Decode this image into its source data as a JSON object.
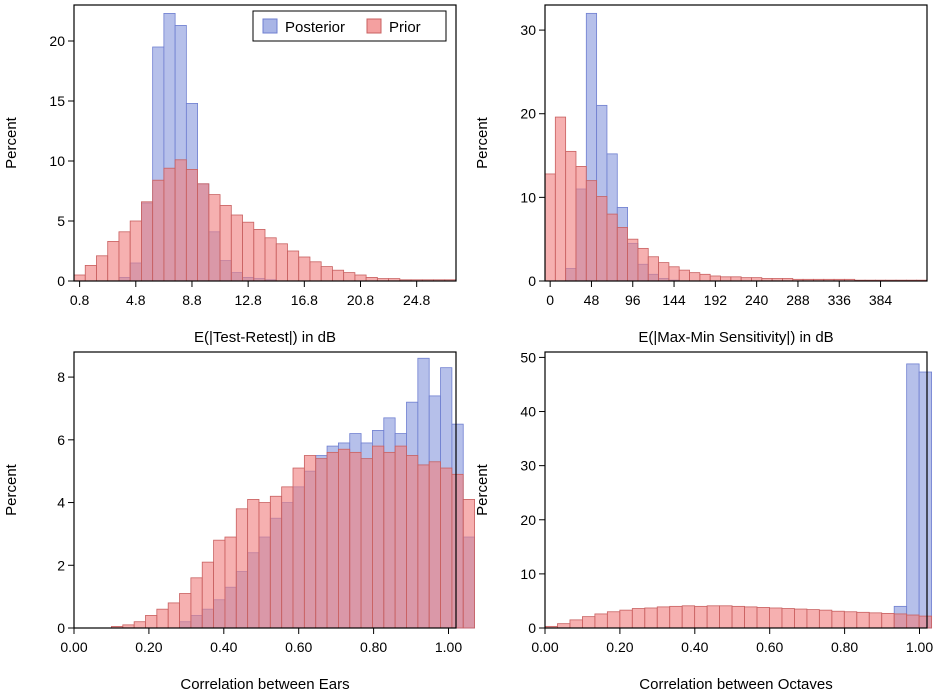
{
  "colors": {
    "posterior_fill": "#a9b5e6",
    "posterior_stroke": "#6f7fd0",
    "prior_fill": "#f08080",
    "prior_stroke": "#c86060",
    "frame": "#000000"
  },
  "legend": {
    "posterior": "Posterior",
    "prior": "Prior"
  },
  "chart_data": [
    {
      "type": "bar",
      "title": "",
      "xlabel": "E(|Test-Retest|) in dB",
      "ylabel": "Percent",
      "xlim": [
        0.4,
        27.6
      ],
      "ylim": [
        0,
        23
      ],
      "x_ticks": [
        "0.8",
        "4.8",
        "8.8",
        "12.8",
        "16.8",
        "20.8",
        "24.8"
      ],
      "x_tick_values": [
        0.8,
        4.8,
        8.8,
        12.8,
        16.8,
        20.8,
        24.8
      ],
      "y_ticks": [
        "0",
        "5",
        "10",
        "15",
        "20"
      ],
      "y_tick_values": [
        0,
        5,
        10,
        15,
        20
      ],
      "bin_start": 0.4,
      "bin_width": 0.8,
      "legend": "top-right",
      "series": [
        {
          "name": "Posterior",
          "values": [
            0,
            0,
            0,
            0,
            0.3,
            1.5,
            6.5,
            19.5,
            22.3,
            21.3,
            14.8,
            8.1,
            4.1,
            1.7,
            0.7,
            0.3,
            0.2,
            0.1,
            0,
            0,
            0,
            0,
            0,
            0,
            0,
            0,
            0,
            0,
            0,
            0,
            0,
            0,
            0,
            0
          ]
        },
        {
          "name": "Prior",
          "values": [
            0.5,
            1.3,
            2.1,
            3.3,
            4.1,
            5.0,
            6.6,
            8.4,
            9.4,
            10.1,
            9.3,
            8.1,
            7.2,
            6.3,
            5.5,
            4.9,
            4.3,
            3.6,
            3.1,
            2.5,
            2.0,
            1.6,
            1.2,
            0.9,
            0.7,
            0.5,
            0.3,
            0.2,
            0.2,
            0.1,
            0.1,
            0.1,
            0.1,
            0.1
          ]
        }
      ]
    },
    {
      "type": "bar",
      "title": "",
      "xlabel": "E(|Max-Min Sensitivity|) in dB",
      "ylabel": "Percent",
      "xlim": [
        -6,
        438
      ],
      "ylim": [
        0,
        33
      ],
      "x_ticks": [
        "0",
        "48",
        "96",
        "144",
        "192",
        "240",
        "288",
        "336",
        "384"
      ],
      "x_tick_values": [
        0,
        48,
        96,
        144,
        192,
        240,
        288,
        336,
        384
      ],
      "y_ticks": [
        "0",
        "10",
        "20",
        "30"
      ],
      "y_tick_values": [
        0,
        10,
        20,
        30
      ],
      "bin_start": -6,
      "bin_width": 12,
      "legend": "top-right",
      "series": [
        {
          "name": "Posterior",
          "values": [
            0,
            0,
            1.5,
            11.0,
            32.0,
            21.0,
            15.2,
            8.8,
            4.5,
            2.0,
            0.8,
            0.3,
            0.1,
            0,
            0,
            0,
            0,
            0,
            0,
            0,
            0,
            0,
            0,
            0,
            0,
            0,
            0,
            0,
            0,
            0,
            0,
            0,
            0,
            0,
            0,
            0,
            0
          ]
        },
        {
          "name": "Prior",
          "values": [
            12.8,
            19.6,
            15.5,
            13.7,
            12.0,
            10.1,
            8.0,
            6.4,
            5.0,
            3.9,
            2.9,
            2.2,
            1.7,
            1.3,
            1.0,
            0.8,
            0.6,
            0.5,
            0.5,
            0.4,
            0.4,
            0.3,
            0.3,
            0.3,
            0.2,
            0.2,
            0.2,
            0.2,
            0.2,
            0.2,
            0.1,
            0.1,
            0.1,
            0.1,
            0.1,
            0.1,
            0.1
          ]
        }
      ]
    },
    {
      "type": "bar",
      "title": "",
      "xlabel": "Correlation between Ears",
      "ylabel": "Percent",
      "xlim": [
        0,
        1.02
      ],
      "ylim": [
        0,
        8.8
      ],
      "x_ticks": [
        "0.00",
        "0.20",
        "0.40",
        "0.60",
        "0.80",
        "1.00"
      ],
      "x_tick_values": [
        0,
        0.2,
        0.4,
        0.6,
        0.8,
        1.0
      ],
      "y_ticks": [
        "0",
        "2",
        "4",
        "6",
        "8"
      ],
      "y_tick_values": [
        0,
        2,
        4,
        6,
        8
      ],
      "bin_start": 0.1,
      "bin_width": 0.0303,
      "legend": "none",
      "series": [
        {
          "name": "Posterior",
          "values": [
            0,
            0,
            0,
            0,
            0,
            0,
            0.2,
            0.4,
            0.6,
            0.9,
            1.3,
            1.8,
            2.4,
            2.9,
            3.5,
            4.0,
            4.5,
            5.0,
            5.5,
            5.8,
            5.9,
            6.2,
            5.9,
            6.3,
            6.7,
            6.2,
            7.2,
            8.6,
            7.4,
            8.3,
            6.5,
            2.9
          ]
        },
        {
          "name": "Prior",
          "values": [
            0.05,
            0.1,
            0.2,
            0.4,
            0.6,
            0.8,
            1.1,
            1.6,
            2.1,
            2.8,
            2.9,
            3.8,
            4.1,
            4.0,
            4.2,
            4.5,
            5.1,
            5.5,
            5.4,
            5.6,
            5.7,
            5.6,
            5.4,
            5.8,
            5.6,
            5.8,
            5.5,
            5.2,
            5.3,
            5.1,
            4.9,
            4.1
          ]
        }
      ]
    },
    {
      "type": "bar",
      "title": "",
      "xlabel": "Correlation between Octaves",
      "ylabel": "Percent",
      "xlim": [
        0,
        1.02
      ],
      "ylim": [
        0,
        51
      ],
      "x_ticks": [
        "0.00",
        "0.20",
        "0.40",
        "0.60",
        "0.80",
        "1.00"
      ],
      "x_tick_values": [
        0,
        0.2,
        0.4,
        0.6,
        0.8,
        1.0
      ],
      "y_ticks": [
        "0",
        "10",
        "20",
        "30",
        "40",
        "50"
      ],
      "y_tick_values": [
        0,
        10,
        20,
        30,
        40,
        50
      ],
      "bin_start": 0,
      "bin_width": 0.0333,
      "legend": "none",
      "series": [
        {
          "name": "Posterior",
          "values": [
            0,
            0,
            0,
            0,
            0,
            0,
            0,
            0,
            0,
            0,
            0,
            0,
            0,
            0,
            0,
            0,
            0,
            0,
            0,
            0,
            0,
            0,
            0,
            0,
            0,
            0,
            0,
            0,
            4.0,
            48.8,
            47.3
          ]
        },
        {
          "name": "Prior",
          "values": [
            0.3,
            0.8,
            1.5,
            2.1,
            2.6,
            3.0,
            3.3,
            3.6,
            3.7,
            3.9,
            4.0,
            4.1,
            4.0,
            4.1,
            4.1,
            4.0,
            3.9,
            3.8,
            3.7,
            3.6,
            3.5,
            3.4,
            3.3,
            3.1,
            3.0,
            2.9,
            2.8,
            2.7,
            2.6,
            2.4,
            2.2
          ]
        }
      ]
    }
  ]
}
